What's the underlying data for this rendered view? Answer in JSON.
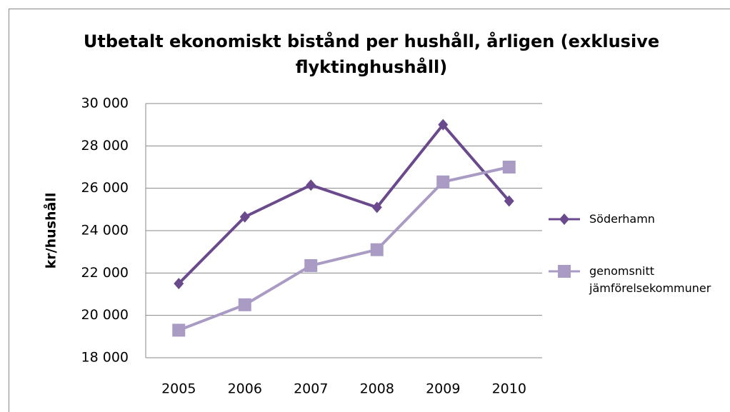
{
  "chart_data": {
    "type": "line",
    "title": "Utbetalt ekonomiskt bistånd per hushåll, årligen (exklusive flyktinghushåll)",
    "y_label": "kr/hushåll",
    "categories": [
      "2005",
      "2006",
      "2007",
      "2008",
      "2009",
      "2010"
    ],
    "series": [
      {
        "name": "Söderhamn",
        "color": "#6a4a8c",
        "marker": "diamond",
        "values": [
          21500,
          24650,
          26150,
          25100,
          29000,
          25400
        ]
      },
      {
        "name": "genomsnitt jämförelsekommuner",
        "color": "#a99bc4",
        "marker": "square",
        "values": [
          19300,
          20500,
          22350,
          23100,
          26300,
          27000
        ]
      }
    ],
    "ylim": [
      18000,
      30000
    ],
    "yticks": [
      {
        "value": 18000,
        "label": "18 000"
      },
      {
        "value": 20000,
        "label": "20 000"
      },
      {
        "value": 22000,
        "label": "22 000"
      },
      {
        "value": 24000,
        "label": "24 000"
      },
      {
        "value": 26000,
        "label": "26 000"
      },
      {
        "value": 28000,
        "label": "28 000"
      },
      {
        "value": 30000,
        "label": "30 000"
      }
    ],
    "grid": true,
    "legend": "right"
  }
}
